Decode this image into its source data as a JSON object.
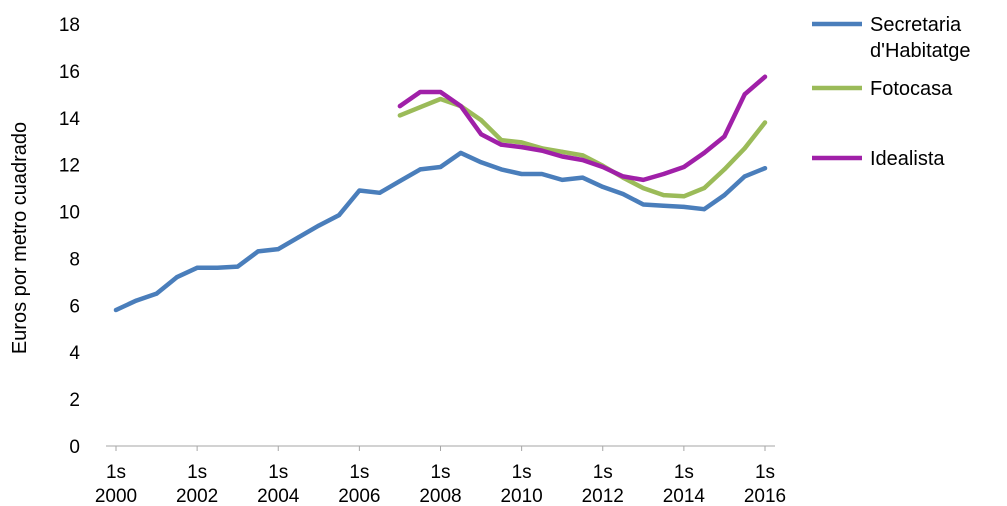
{
  "chart_data": {
    "type": "line",
    "title": "",
    "xlabel": "",
    "ylabel": "Euros por metro cuadrado",
    "ylim": [
      0,
      18
    ],
    "yticks": [
      0,
      2,
      4,
      6,
      8,
      10,
      12,
      14,
      16,
      18
    ],
    "x_ticks": [
      {
        "line1": "1s",
        "line2": "2000",
        "x": 2000
      },
      {
        "line1": "1s",
        "line2": "2002",
        "x": 2002
      },
      {
        "line1": "1s",
        "line2": "2004",
        "x": 2004
      },
      {
        "line1": "1s",
        "line2": "2006",
        "x": 2006
      },
      {
        "line1": "1s",
        "line2": "2008",
        "x": 2008
      },
      {
        "line1": "1s",
        "line2": "2010",
        "x": 2010
      },
      {
        "line1": "1s",
        "line2": "2012",
        "x": 2012
      },
      {
        "line1": "1s",
        "line2": "2014",
        "x": 2014
      },
      {
        "line1": "1s",
        "line2": "2016",
        "x": 2016
      }
    ],
    "xlim": [
      2000,
      2016
    ],
    "grid": false,
    "legend_position": "right",
    "series": [
      {
        "name": "Secretaria d'Habitatge",
        "name_lines": [
          "Secretaria",
          "d'Habitatge"
        ],
        "color": "#4a7ebb",
        "x": [
          2000,
          2000.5,
          2001,
          2001.5,
          2002,
          2002.5,
          2003,
          2003.5,
          2004,
          2004.5,
          2005,
          2005.5,
          2006,
          2006.5,
          2007,
          2007.5,
          2008,
          2008.5,
          2009,
          2009.5,
          2010,
          2010.5,
          2011,
          2011.5,
          2012,
          2012.5,
          2013,
          2013.5,
          2014,
          2014.5,
          2015,
          2015.5,
          2016
        ],
        "y": [
          5.8,
          6.2,
          6.5,
          7.2,
          7.6,
          7.6,
          7.65,
          8.3,
          8.4,
          8.9,
          9.4,
          9.85,
          10.9,
          10.8,
          11.3,
          11.8,
          11.9,
          12.5,
          12.1,
          11.8,
          11.6,
          11.6,
          11.35,
          11.45,
          11.05,
          10.75,
          10.3,
          10.25,
          10.2,
          10.1,
          10.7,
          11.5,
          11.85
        ]
      },
      {
        "name": "Fotocasa",
        "name_lines": [
          "Fotocasa"
        ],
        "color": "#9bbb59",
        "x": [
          2007,
          2007.5,
          2008,
          2008.5,
          2009,
          2009.5,
          2010,
          2010.5,
          2011,
          2011.5,
          2012,
          2012.5,
          2013,
          2013.5,
          2014,
          2014.5,
          2015,
          2015.5,
          2016
        ],
        "y": [
          14.1,
          14.45,
          14.8,
          14.5,
          13.9,
          13.05,
          12.95,
          12.7,
          12.55,
          12.4,
          11.95,
          11.45,
          11.0,
          10.7,
          10.65,
          11.0,
          11.8,
          12.7,
          13.8
        ]
      },
      {
        "name": "Idealista",
        "name_lines": [
          "Idealista"
        ],
        "color": "#a020a8",
        "x": [
          2007,
          2007.5,
          2008,
          2008.5,
          2009,
          2009.5,
          2010,
          2010.5,
          2011,
          2011.5,
          2012,
          2012.5,
          2013,
          2013.5,
          2014,
          2014.5,
          2015,
          2015.5,
          2016
        ],
        "y": [
          14.5,
          15.1,
          15.1,
          14.5,
          13.3,
          12.85,
          12.75,
          12.6,
          12.35,
          12.2,
          11.9,
          11.5,
          11.35,
          11.6,
          11.9,
          12.5,
          13.2,
          15.0,
          15.75
        ]
      }
    ]
  }
}
